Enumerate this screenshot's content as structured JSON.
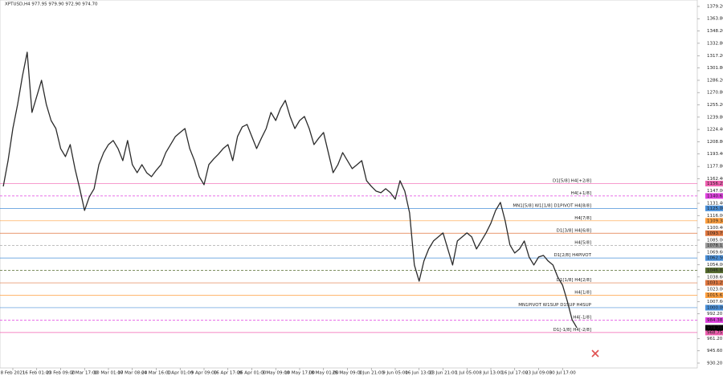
{
  "chart_data": {
    "type": "line",
    "title": "XPTUSD,H4  977.95 979.90 972.90 974.70",
    "color": "#2b2b2b",
    "categories": [
      null,
      null,
      "8 Feb 2021",
      null,
      null,
      null,
      null,
      "16 Feb 01:00",
      null,
      null,
      null,
      null,
      "23 Feb 09:00",
      null,
      null,
      null,
      null,
      "2 Mar 17:00",
      null,
      null,
      null,
      null,
      "10 Mar 01:00",
      null,
      null,
      null,
      null,
      "17 Mar 08:00",
      null,
      null,
      null,
      null,
      "24 Mar 16:00",
      null,
      null,
      null,
      null,
      "1 Apr 01:00",
      null,
      null,
      null,
      null,
      "9 Apr 09:00",
      null,
      null,
      null,
      null,
      "16 Apr 17:00",
      null,
      null,
      null,
      null,
      "26 Apr 01:00",
      null,
      null,
      null,
      null,
      "3 May 09:00",
      null,
      null,
      null,
      null,
      "10 May 17:00",
      null,
      null,
      null,
      null,
      "18 May 01:00",
      null,
      null,
      null,
      null,
      "25 May 09:00",
      null,
      null,
      null,
      null,
      "1 Jun 21:00",
      null,
      null,
      null,
      null,
      "9 Jun 05:00",
      null,
      null,
      null,
      null,
      "16 Jun 13:00",
      null,
      null,
      null,
      null,
      "23 Jun 21:00",
      null,
      null,
      null,
      null,
      "1 Jul 05:00",
      null,
      null,
      null,
      null,
      "8 Jul 13:00",
      null,
      null,
      null,
      null,
      "16 Jul 17:00",
      null,
      null,
      null,
      null,
      "23 Jul 09:00",
      null,
      null,
      null,
      null,
      "30 Jul 17:00",
      null,
      null,
      null
    ],
    "values": [
      1152.7,
      1185.1,
      1225.5,
      1255.9,
      1291.3,
      1321.6,
      1245.8,
      1266.0,
      1286.2,
      1255.9,
      1235.6,
      1225.5,
      1200.3,
      1190.2,
      1205.3,
      1175.0,
      1149.7,
      1122.4,
      1139.6,
      1149.7,
      1180.0,
      1195.2,
      1205.3,
      1210.4,
      1200.3,
      1185.1,
      1210.4,
      1180.0,
      1169.9,
      1180.0,
      1169.9,
      1164.9,
      1173.0,
      1180.0,
      1195.2,
      1205.3,
      1215.4,
      1220.5,
      1225.5,
      1200.3,
      1185.1,
      1164.9,
      1154.8,
      1180.0,
      1187.1,
      1193.2,
      1200.3,
      1205.3,
      1185.1,
      1215.4,
      1227.6,
      1230.6,
      1215.4,
      1200.3,
      1213.4,
      1225.5,
      1245.8,
      1235.6,
      1250.8,
      1260.9,
      1240.7,
      1225.5,
      1235.6,
      1240.7,
      1225.5,
      1205.3,
      1213.4,
      1220.5,
      1195.2,
      1169.9,
      1180.0,
      1195.2,
      1185.1,
      1175.0,
      1180.0,
      1185.1,
      1159.8,
      1152.7,
      1146.7,
      1144.7,
      1149.7,
      1144.7,
      1136.6,
      1159.8,
      1146.7,
      1119.4,
      1053.7,
      1033.4,
      1058.7,
      1073.9,
      1084.0,
      1089.1,
      1094.1,
      1073.9,
      1053.7,
      1084.0,
      1089.1,
      1094.1,
      1089.1,
      1073.9,
      1084.0,
      1094.1,
      1106.2,
      1122.4,
      1132.5,
      1109.3,
      1078.9,
      1068.8,
      1073.9,
      1084.0,
      1063.8,
      1053.7,
      1063.8,
      1065.8,
      1058.7,
      1053.7,
      1038.5,
      1028.4,
      1008.2,
      984.9,
      974.7
    ],
    "ylim": [
      924.1,
      1387.3
    ],
    "yticks": [
      {
        "value": 1379.2,
        "label": "1379.20"
      },
      {
        "value": 1363.8,
        "label": "1363.80"
      },
      {
        "value": 1348.2,
        "label": "1348.20"
      },
      {
        "value": 1332.8,
        "label": "1332.80"
      },
      {
        "value": 1317.2,
        "label": "1317.20"
      },
      {
        "value": 1301.8,
        "label": "1301.80"
      },
      {
        "value": 1286.2,
        "label": "1286.20"
      },
      {
        "value": 1270.8,
        "label": "1270.80"
      },
      {
        "value": 1255.2,
        "label": "1255.20"
      },
      {
        "value": 1239.8,
        "label": "1239.80"
      },
      {
        "value": 1224.4,
        "label": "1224.40"
      },
      {
        "value": 1208.8,
        "label": "1208.80"
      },
      {
        "value": 1193.4,
        "label": "1193.40"
      },
      {
        "value": 1177.8,
        "label": "1177.80"
      },
      {
        "value": 1162.4,
        "label": "1162.40"
      },
      {
        "value": 1147,
        "label": "1147.00"
      },
      {
        "value": 1131.4,
        "label": "1131.40"
      },
      {
        "value": 1116,
        "label": "1116.00"
      },
      {
        "value": 1100.4,
        "label": "1100.40"
      },
      {
        "value": 1085,
        "label": "1085.00"
      },
      {
        "value": 1069.6,
        "label": "1069.60"
      },
      {
        "value": 1054,
        "label": "1054.00"
      },
      {
        "value": 1038.6,
        "label": "1038.60"
      },
      {
        "value": 1023,
        "label": "1023.00"
      },
      {
        "value": 1007.6,
        "label": "1007.60"
      },
      {
        "value": 992.2,
        "label": "992.20"
      },
      {
        "value": 961.2,
        "label": "961.20"
      },
      {
        "value": 945.6,
        "label": "945.60"
      },
      {
        "value": 930.2,
        "label": "930.20"
      }
    ],
    "levels": [
      {
        "label": "D1[5/8] H4[+2/8]",
        "value": 1156.25,
        "value_label": "1156.25",
        "color": "#f060b0",
        "dashed": false
      },
      {
        "label": "H4[+1/8]",
        "value": 1140.63,
        "value_label": "1140.63",
        "color": "#e040e0",
        "dashed": true
      },
      {
        "label": "MN1[5/8] W1[1/8] D1PIVOT H4[8/8]",
        "value": 1125,
        "value_label": "1125.00",
        "color": "#4a90d9",
        "dashed": false
      },
      {
        "label": "H4[7/8]",
        "value": 1109.38,
        "value_label": "1109.38",
        "color": "#ffa040",
        "dashed": false
      },
      {
        "label": "D1[3/8] H4[6/8]",
        "value": 1093.75,
        "value_label": "1093.75",
        "color": "#e07840",
        "dashed": false
      },
      {
        "label": "H4[5/8]",
        "value": 1078.13,
        "value_label": "1078.13",
        "color": "#9a9a9a",
        "dashed": true
      },
      {
        "label": "D1[2/8] H4PIVOT",
        "value": 1062.5,
        "value_label": "1062.50",
        "color": "#4a90d9",
        "dashed": false
      },
      {
        "value": 1046.88,
        "value_label": "1046.88",
        "color": "#556b2f",
        "dashed": true
      },
      {
        "label": "D1[1/8] H4[2/8]",
        "value": 1031.25,
        "value_label": "1031.25",
        "color": "#e07840",
        "dashed": false
      },
      {
        "label": "H4[1/8]",
        "value": 1015.63,
        "value_label": "1015.63",
        "color": "#ffa040",
        "dashed": false
      },
      {
        "label": "MN1PIVOT W1SUP D1SUP H4SUP",
        "value": 1000,
        "value_label": "1000.00",
        "color": "#4a90d9",
        "dashed": false
      },
      {
        "label": "H4[-1/8]",
        "value": 984.38,
        "value_label": "984.38",
        "color": "#e040e0",
        "dashed": true
      },
      {
        "label": "D1[-1/8] H4[-2/8]",
        "value": 968.75,
        "value_label": "968.75",
        "color": "#f060b0",
        "dashed": false
      }
    ],
    "last": {
      "value": 974.7,
      "label": "974.70",
      "color": "#000000"
    }
  }
}
